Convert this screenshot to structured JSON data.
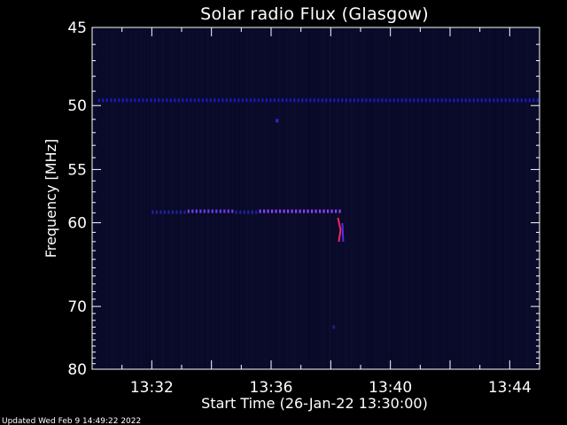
{
  "chart_data": {
    "type": "heatmap",
    "title": "Solar radio Flux (Glasgow)",
    "xlabel": "Start Time (26-Jan-22 13:30:00)",
    "ylabel": "Frequency [MHz]",
    "x_unit": "minutes after 13:30",
    "xlim": [
      0,
      15
    ],
    "ylim": [
      80,
      45
    ],
    "x_ticks": [
      {
        "value": 2,
        "label": "13:32"
      },
      {
        "value": 6,
        "label": "13:36"
      },
      {
        "value": 10,
        "label": "13:40"
      },
      {
        "value": 14,
        "label": "13:44"
      }
    ],
    "y_ticks": [
      {
        "value": 45,
        "label": "45"
      },
      {
        "value": 50,
        "label": "50"
      },
      {
        "value": 55,
        "label": "55"
      },
      {
        "value": 60,
        "label": "60"
      },
      {
        "value": 70,
        "label": "70"
      },
      {
        "value": 80,
        "label": "80"
      }
    ],
    "background_color": "#0a0a2a",
    "features": [
      {
        "name": "",
        "kind": "band",
        "freq_mhz": 49.6,
        "t_start": 0.2,
        "t_end": 15.0,
        "color": "#2222ff",
        "intensity": 0.7
      },
      {
        "name": "",
        "kind": "band",
        "freq_mhz": 58.9,
        "t_start": 2.0,
        "t_end": 3.2,
        "color": "#3333ee",
        "intensity": 0.6
      },
      {
        "name": "",
        "kind": "band",
        "freq_mhz": 58.8,
        "t_start": 3.2,
        "t_end": 4.8,
        "color": "#7744ff",
        "intensity": 0.9
      },
      {
        "name": "",
        "kind": "band",
        "freq_mhz": 58.9,
        "t_start": 4.8,
        "t_end": 5.6,
        "color": "#3333ee",
        "intensity": 0.6
      },
      {
        "name": "",
        "kind": "band",
        "freq_mhz": 58.8,
        "t_start": 5.6,
        "t_end": 8.4,
        "color": "#8844ff",
        "intensity": 1.0
      },
      {
        "name": "",
        "kind": "burst",
        "freq_start": 59.5,
        "freq_end": 62.0,
        "t": 8.3,
        "color": "#ff2266",
        "intensity": 1.0
      },
      {
        "name": "",
        "kind": "point",
        "freq_mhz": 51.1,
        "t": 6.2,
        "color": "#3333ff",
        "intensity": 0.8
      },
      {
        "name": "",
        "kind": "point",
        "freq_mhz": 73.0,
        "t": 8.1,
        "color": "#3333cc",
        "intensity": 0.5
      }
    ]
  },
  "footer": {
    "updated_text": "Updated Wed Feb  9 14:49:22 2022"
  }
}
